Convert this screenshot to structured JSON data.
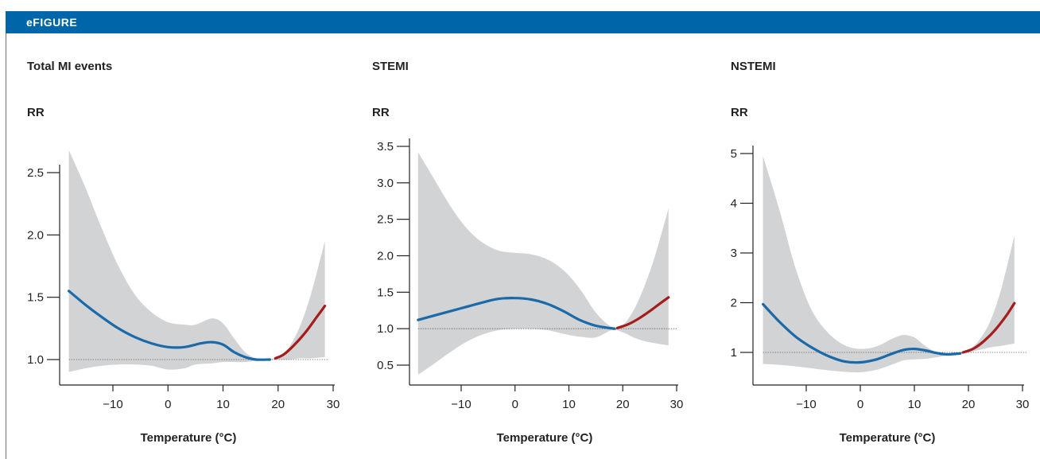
{
  "header": {
    "label": "eFIGURE"
  },
  "colors": {
    "header": "#0066aa",
    "cold": "#1a6aaa",
    "heat": "#a51c1c",
    "ci": "#d2d3d5",
    "reference": "#666666"
  },
  "chart_data": [
    {
      "type": "line",
      "title": "Total MI events",
      "ylabel": "RR",
      "xlabel": "Temperature (°C)",
      "xlim": [
        -18,
        30
      ],
      "ylim": [
        0.95,
        2.75
      ],
      "yticks": [
        1.0,
        1.5,
        2.0,
        2.5
      ],
      "ytick_labels": [
        "1.0",
        "1.5",
        "2.0",
        "2.5"
      ],
      "xticks": [
        -10,
        0,
        10,
        20,
        30
      ],
      "xtick_labels": [
        "−10",
        "0",
        "10",
        "20",
        "30"
      ],
      "reference_line": 1.0,
      "series": [
        {
          "role": "cold",
          "x": [
            -18,
            -15,
            -12,
            -9,
            -6,
            -3,
            0,
            3,
            6,
            8,
            10,
            12,
            14,
            16,
            18.5
          ],
          "y": [
            1.55,
            1.44,
            1.34,
            1.25,
            1.18,
            1.13,
            1.1,
            1.1,
            1.13,
            1.14,
            1.12,
            1.06,
            1.02,
            1.0,
            1.0
          ]
        },
        {
          "role": "heat",
          "x": [
            19.5,
            21,
            23,
            25,
            27,
            28.5
          ],
          "y": [
            1.01,
            1.04,
            1.12,
            1.22,
            1.34,
            1.43
          ]
        }
      ],
      "ci_upper": {
        "x": [
          -18,
          -15,
          -12,
          -9,
          -6,
          -3,
          0,
          3,
          5,
          8,
          10,
          12,
          14,
          16,
          18,
          20,
          22,
          24,
          26,
          28.5
        ],
        "y": [
          2.68,
          2.38,
          2.05,
          1.75,
          1.52,
          1.38,
          1.3,
          1.28,
          1.28,
          1.33,
          1.29,
          1.17,
          1.06,
          1.01,
          1.0,
          1.02,
          1.1,
          1.27,
          1.53,
          1.95
        ]
      },
      "ci_lower": {
        "x": [
          -18,
          -15,
          -12,
          -9,
          -6,
          -3,
          0,
          3,
          5,
          8,
          10,
          12,
          14,
          16,
          18,
          20,
          22,
          24,
          26,
          28.5
        ],
        "y": [
          0.9,
          0.93,
          0.95,
          0.96,
          0.96,
          0.95,
          0.92,
          0.93,
          0.96,
          0.97,
          0.98,
          0.98,
          0.98,
          0.99,
          1.0,
          1.0,
          1.0,
          1.01,
          1.01,
          1.02
        ]
      }
    },
    {
      "type": "line",
      "title": "STEMI",
      "ylabel": "RR",
      "xlabel": "Temperature (°C)",
      "xlim": [
        -18,
        30
      ],
      "ylim": [
        0.3,
        3.55
      ],
      "yticks": [
        0.5,
        1.0,
        1.5,
        2.0,
        2.5,
        3.0,
        3.5
      ],
      "ytick_labels": [
        "0.5",
        "1.0",
        "1.5",
        "2.0",
        "2.5",
        "3.0",
        "3.5"
      ],
      "xticks": [
        -10,
        0,
        10,
        20,
        30
      ],
      "xtick_labels": [
        "−10",
        "0",
        "10",
        "20",
        "30"
      ],
      "reference_line": 1.0,
      "series": [
        {
          "role": "cold",
          "x": [
            -18,
            -14,
            -10,
            -6,
            -3,
            0,
            3,
            6,
            9,
            12,
            15,
            18.5
          ],
          "y": [
            1.12,
            1.2,
            1.28,
            1.36,
            1.41,
            1.42,
            1.4,
            1.34,
            1.24,
            1.12,
            1.04,
            1.0
          ]
        },
        {
          "role": "heat",
          "x": [
            19,
            21,
            23,
            25,
            27,
            28.5
          ],
          "y": [
            1.01,
            1.06,
            1.14,
            1.24,
            1.35,
            1.43
          ]
        }
      ],
      "ci_upper": {
        "x": [
          -18,
          -15,
          -12,
          -9,
          -6,
          -3,
          0,
          3,
          6,
          9,
          12,
          15,
          18,
          20,
          22,
          24,
          26,
          28.5
        ],
        "y": [
          3.42,
          3.05,
          2.68,
          2.38,
          2.18,
          2.07,
          2.04,
          2.02,
          1.95,
          1.8,
          1.55,
          1.22,
          1.02,
          1.05,
          1.25,
          1.58,
          2.0,
          2.65
        ]
      },
      "ci_lower": {
        "x": [
          -18,
          -15,
          -12,
          -9,
          -6,
          -3,
          0,
          3,
          6,
          9,
          12,
          15,
          18,
          20,
          22,
          24,
          26,
          28.5
        ],
        "y": [
          0.37,
          0.52,
          0.68,
          0.82,
          0.92,
          0.98,
          1.0,
          1.0,
          0.98,
          0.93,
          0.89,
          0.88,
          0.98,
          0.95,
          0.88,
          0.83,
          0.8,
          0.77
        ]
      }
    },
    {
      "type": "line",
      "title": "NSTEMI",
      "ylabel": "RR",
      "xlabel": "Temperature (°C)",
      "xlim": [
        -18,
        30
      ],
      "ylim": [
        0.45,
        5.25
      ],
      "yticks": [
        1,
        2,
        3,
        4,
        5
      ],
      "ytick_labels": [
        "1",
        "2",
        "3",
        "4",
        "5"
      ],
      "xticks": [
        -10,
        0,
        10,
        20,
        30
      ],
      "xtick_labels": [
        "−10",
        "0",
        "10",
        "20",
        "30"
      ],
      "reference_line": 1.0,
      "series": [
        {
          "role": "cold",
          "x": [
            -18,
            -15,
            -12,
            -9,
            -6,
            -3,
            0,
            3,
            6,
            8,
            10,
            12,
            14,
            16,
            18.5
          ],
          "y": [
            1.97,
            1.62,
            1.32,
            1.1,
            0.93,
            0.82,
            0.8,
            0.86,
            0.98,
            1.05,
            1.07,
            1.04,
            0.99,
            0.96,
            0.98
          ]
        },
        {
          "role": "heat",
          "x": [
            19,
            21,
            23,
            25,
            27,
            28.5
          ],
          "y": [
            1.0,
            1.08,
            1.24,
            1.46,
            1.74,
            1.99
          ]
        }
      ],
      "ci_upper": {
        "x": [
          -18,
          -15,
          -12,
          -9,
          -6,
          -3,
          0,
          3,
          6,
          8,
          10,
          12,
          14,
          16,
          18,
          20,
          22,
          24,
          26,
          28.5
        ],
        "y": [
          4.95,
          3.88,
          2.7,
          1.85,
          1.4,
          1.15,
          1.07,
          1.12,
          1.28,
          1.35,
          1.3,
          1.13,
          1.01,
          0.98,
          1.0,
          1.05,
          1.25,
          1.62,
          2.25,
          3.35
        ]
      },
      "ci_lower": {
        "x": [
          -18,
          -15,
          -12,
          -9,
          -6,
          -3,
          0,
          3,
          6,
          8,
          10,
          12,
          14,
          16,
          18,
          20,
          22,
          24,
          26,
          28.5
        ],
        "y": [
          0.77,
          0.75,
          0.72,
          0.68,
          0.64,
          0.61,
          0.6,
          0.65,
          0.76,
          0.84,
          0.86,
          0.87,
          0.9,
          0.94,
          0.97,
          1.0,
          1.05,
          1.1,
          1.13,
          1.18
        ]
      }
    }
  ]
}
